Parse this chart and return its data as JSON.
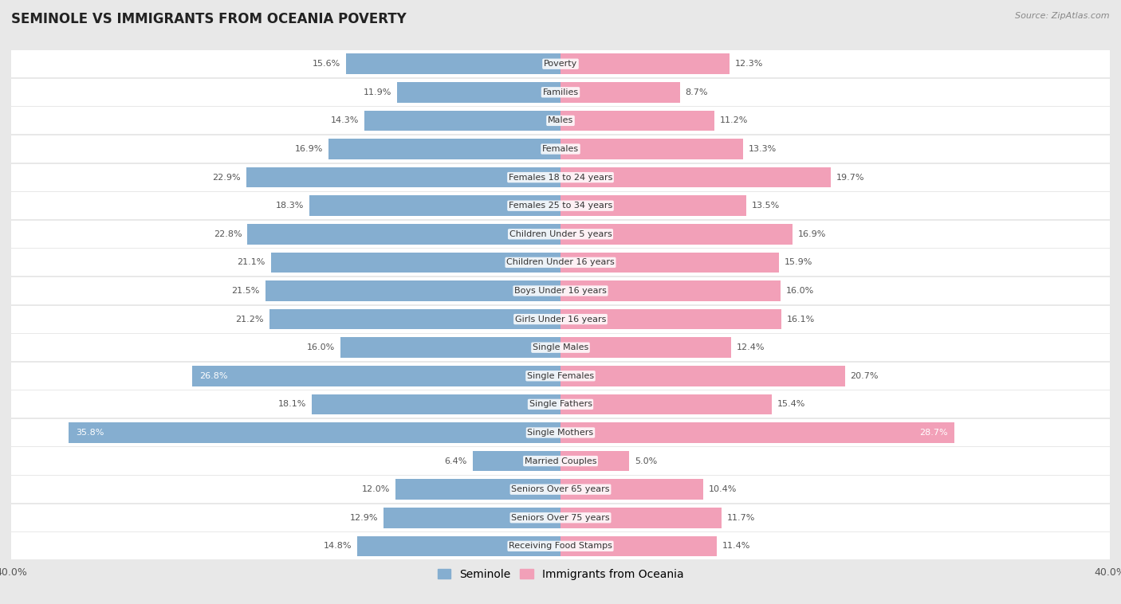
{
  "title": "SEMINOLE VS IMMIGRANTS FROM OCEANIA POVERTY",
  "source": "Source: ZipAtlas.com",
  "categories": [
    "Poverty",
    "Families",
    "Males",
    "Females",
    "Females 18 to 24 years",
    "Females 25 to 34 years",
    "Children Under 5 years",
    "Children Under 16 years",
    "Boys Under 16 years",
    "Girls Under 16 years",
    "Single Males",
    "Single Females",
    "Single Fathers",
    "Single Mothers",
    "Married Couples",
    "Seniors Over 65 years",
    "Seniors Over 75 years",
    "Receiving Food Stamps"
  ],
  "seminole_values": [
    15.6,
    11.9,
    14.3,
    16.9,
    22.9,
    18.3,
    22.8,
    21.1,
    21.5,
    21.2,
    16.0,
    26.8,
    18.1,
    35.8,
    6.4,
    12.0,
    12.9,
    14.8
  ],
  "oceania_values": [
    12.3,
    8.7,
    11.2,
    13.3,
    19.7,
    13.5,
    16.9,
    15.9,
    16.0,
    16.1,
    12.4,
    20.7,
    15.4,
    28.7,
    5.0,
    10.4,
    11.7,
    11.4
  ],
  "seminole_color": "#85AED0",
  "oceania_color": "#F2A0B8",
  "seminole_label": "Seminole",
  "oceania_label": "Immigrants from Oceania",
  "xlim": 40.0,
  "bg_color": "#e8e8e8",
  "row_bg_color": "#ffffff",
  "title_fontsize": 12,
  "source_fontsize": 8,
  "axis_fontsize": 9,
  "label_fontsize": 8,
  "value_fontsize": 8,
  "inside_text_threshold": 25.0
}
